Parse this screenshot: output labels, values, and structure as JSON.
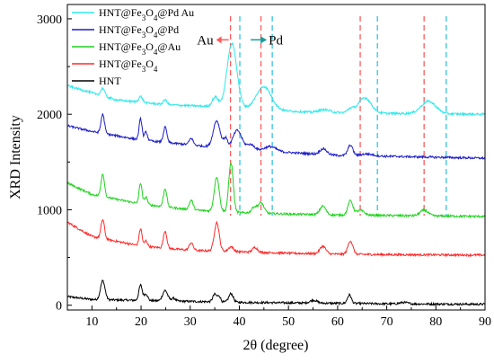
{
  "chart_data": {
    "type": "line",
    "xlabel": "2θ (degree)",
    "ylabel": "XRD Intensity",
    "xlim": [
      5,
      90
    ],
    "ylim": [
      -50,
      3150
    ],
    "x_ticks": [
      "10",
      "20",
      "30",
      "40",
      "50",
      "60",
      "70",
      "80",
      "90"
    ],
    "y_ticks": [
      "0",
      "1000",
      "2000",
      "3000"
    ],
    "grid": false,
    "legend": {
      "placement": "top-left",
      "entries": [
        "HNT@Fe3O4@Pd Au",
        "HNT@Fe3O4@Pd",
        "HNT@Fe3O4@Au",
        "HNT@Fe3O4",
        "HNT"
      ]
    },
    "annotations": [
      {
        "label": "Au",
        "x": 38.2,
        "y": 2780,
        "arrow": "left",
        "color": "#ff5a5a"
      },
      {
        "label": "Pd",
        "x": 40.1,
        "y": 2780,
        "arrow": "right",
        "color": "#1a9b9b"
      }
    ],
    "reference_lines": [
      {
        "name": "Au",
        "color": "#ff5a5a",
        "x": [
          38.2,
          44.4,
          64.6,
          77.6
        ]
      },
      {
        "name": "Pd",
        "color": "#33c4e0",
        "x": [
          40.1,
          46.7,
          68.1,
          82.1
        ]
      }
    ],
    "series": [
      {
        "name": "HNT@Fe3O4@Pd Au",
        "color": "#2fe8ea",
        "baseline": [
          [
            5,
            2300
          ],
          [
            15,
            2150
          ],
          [
            25,
            2100
          ],
          [
            35,
            2080
          ],
          [
            45,
            2050
          ],
          [
            55,
            2020
          ],
          [
            70,
            2010
          ],
          [
            90,
            2000
          ]
        ],
        "peaks": [
          [
            12.2,
            80,
            0.4
          ],
          [
            19.9,
            60,
            0.4
          ],
          [
            24.9,
            50,
            0.4
          ],
          [
            35.1,
            100,
            0.6
          ],
          [
            38.5,
            670,
            1.0
          ],
          [
            45.0,
            240,
            1.5
          ],
          [
            57.3,
            30,
            1.2
          ],
          [
            62.6,
            40,
            0.6
          ],
          [
            65.5,
            160,
            1.3
          ],
          [
            78.5,
            130,
            1.5
          ]
        ]
      },
      {
        "name": "HNT@Fe3O4@Pd",
        "color": "#1c1ccc",
        "baseline": [
          [
            5,
            1880
          ],
          [
            10,
            1820
          ],
          [
            20,
            1730
          ],
          [
            30,
            1680
          ],
          [
            40,
            1630
          ],
          [
            50,
            1600
          ],
          [
            60,
            1570
          ],
          [
            70,
            1560
          ],
          [
            90,
            1540
          ]
        ],
        "peaks": [
          [
            12.2,
            200,
            0.35
          ],
          [
            19.9,
            220,
            0.3
          ],
          [
            21.0,
            90,
            0.3
          ],
          [
            24.9,
            160,
            0.35
          ],
          [
            30.2,
            70,
            0.4
          ],
          [
            35.4,
            280,
            0.7
          ],
          [
            37.2,
            100,
            0.4
          ],
          [
            39.6,
            200,
            0.9
          ],
          [
            42.3,
            60,
            0.8
          ],
          [
            46.3,
            50,
            1.2
          ],
          [
            57.1,
            60,
            0.7
          ],
          [
            62.6,
            110,
            0.5
          ],
          [
            66.0,
            20,
            1.2
          ]
        ]
      },
      {
        "name": "HNT@Fe3O4@Au",
        "color": "#1fd31f",
        "baseline": [
          [
            5,
            1280
          ],
          [
            10,
            1160
          ],
          [
            20,
            1060
          ],
          [
            30,
            1000
          ],
          [
            40,
            970
          ],
          [
            50,
            955
          ],
          [
            60,
            945
          ],
          [
            70,
            940
          ],
          [
            90,
            930
          ]
        ],
        "peaks": [
          [
            12.2,
            240,
            0.35
          ],
          [
            19.9,
            220,
            0.3
          ],
          [
            21.0,
            80,
            0.3
          ],
          [
            24.9,
            190,
            0.35
          ],
          [
            30.2,
            100,
            0.4
          ],
          [
            35.4,
            360,
            0.5
          ],
          [
            38.3,
            520,
            0.45
          ],
          [
            43.0,
            60,
            0.5
          ],
          [
            44.4,
            110,
            0.6
          ],
          [
            57.0,
            90,
            0.6
          ],
          [
            62.6,
            150,
            0.5
          ],
          [
            64.6,
            50,
            0.8
          ],
          [
            77.6,
            60,
            0.8
          ]
        ]
      },
      {
        "name": "HNT@Fe3O4",
        "color": "#ff2a2a",
        "baseline": [
          [
            5,
            870
          ],
          [
            10,
            720
          ],
          [
            20,
            620
          ],
          [
            30,
            575
          ],
          [
            40,
            560
          ],
          [
            50,
            545
          ],
          [
            60,
            535
          ],
          [
            70,
            530
          ],
          [
            90,
            525
          ]
        ],
        "peaks": [
          [
            12.2,
            200,
            0.35
          ],
          [
            19.9,
            180,
            0.3
          ],
          [
            21.0,
            60,
            0.3
          ],
          [
            24.9,
            180,
            0.35
          ],
          [
            30.2,
            80,
            0.4
          ],
          [
            35.4,
            300,
            0.5
          ],
          [
            38.3,
            50,
            0.5
          ],
          [
            43.2,
            50,
            0.5
          ],
          [
            57.0,
            80,
            0.6
          ],
          [
            62.6,
            140,
            0.5
          ]
        ]
      },
      {
        "name": "HNT",
        "color": "#000000",
        "baseline": [
          [
            5,
            90
          ],
          [
            10,
            60
          ],
          [
            20,
            50
          ],
          [
            30,
            40
          ],
          [
            40,
            30
          ],
          [
            50,
            25
          ],
          [
            60,
            20
          ],
          [
            70,
            15
          ],
          [
            90,
            10
          ]
        ],
        "peaks": [
          [
            12.2,
            200,
            0.45
          ],
          [
            19.9,
            160,
            0.35
          ],
          [
            21.0,
            70,
            0.35
          ],
          [
            24.9,
            110,
            0.5
          ],
          [
            26.6,
            30,
            0.4
          ],
          [
            35.0,
            80,
            0.4
          ],
          [
            35.9,
            60,
            0.3
          ],
          [
            38.3,
            90,
            0.45
          ],
          [
            55.1,
            30,
            0.7
          ],
          [
            62.4,
            90,
            0.4
          ],
          [
            73.5,
            15,
            0.8
          ]
        ]
      }
    ]
  }
}
